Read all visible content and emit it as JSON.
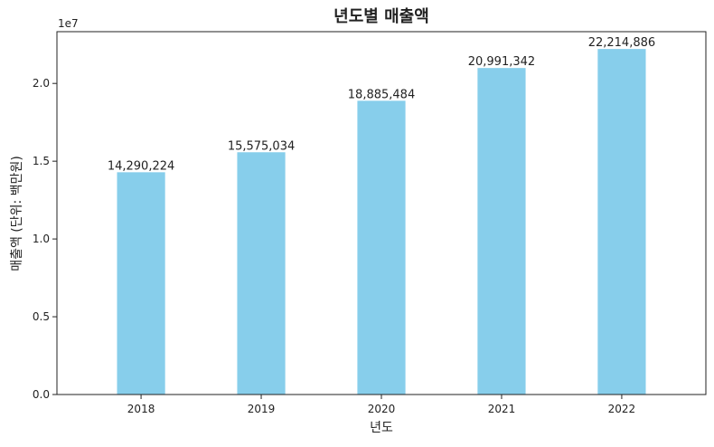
{
  "chart_data": {
    "type": "bar",
    "title": "년도별 매출액",
    "xlabel": "년도",
    "ylabel": "매출액 (단위: 백만원)",
    "y_offset_label": "1e7",
    "categories": [
      "2018",
      "2019",
      "2020",
      "2021",
      "2022"
    ],
    "values": [
      14290224,
      15575034,
      18885484,
      20991342,
      22214886
    ],
    "value_labels": [
      "14,290,224",
      "15,575,034",
      "18,885,484",
      "20,991,342",
      "22,214,886"
    ],
    "ylim": [
      0,
      23327530
    ],
    "y_ticks": [
      0,
      5000000,
      10000000,
      15000000,
      20000000
    ],
    "y_tick_labels": [
      "0.0",
      "0.5",
      "1.0",
      "1.5",
      "2.0"
    ],
    "grid": false,
    "legend": "none",
    "bar_color": "#87CEEB"
  }
}
